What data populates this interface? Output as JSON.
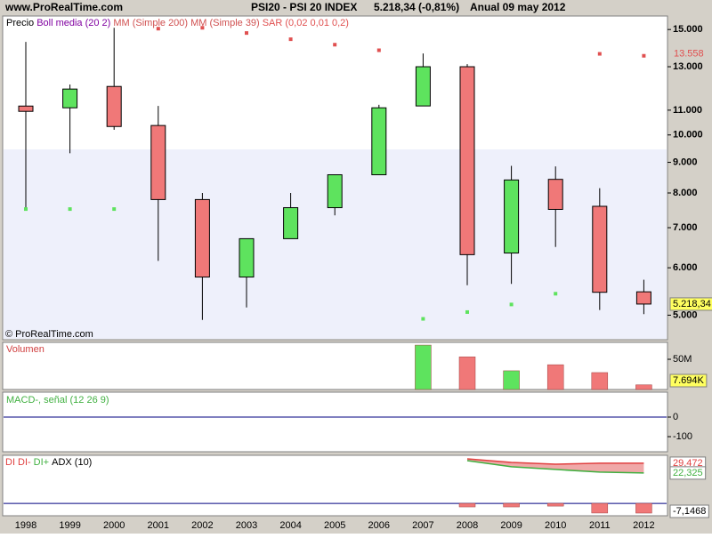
{
  "header": {
    "site": "www.ProRealTime.com",
    "instrument": "PSI20 - PSI 20 INDEX",
    "quote": "5.218,34 (-0,81%)",
    "period": "Anual  09 may 2012"
  },
  "chart_data": [
    {
      "type": "candlestick",
      "legend": [
        {
          "name": "Precio",
          "color": "#000000"
        },
        {
          "name": "Boll media (20 2)",
          "color": "#8000a0"
        },
        {
          "name": "MM (Simple 200)",
          "color": "#d05050"
        },
        {
          "name": "MM (Simple 39)",
          "color": "#d05050"
        }
      ],
      "watermark": "© ProRealTime.com",
      "categories": [
        "1998",
        "1999",
        "2000",
        "2001",
        "2002",
        "2003",
        "2004",
        "2005",
        "2006",
        "2007",
        "2008",
        "2009",
        "2010",
        "2011",
        "2012"
      ],
      "open": [
        11175,
        11100,
        12050,
        10370,
        7800,
        5790,
        6710,
        7560,
        8580,
        11180,
        13000,
        6350,
        8430,
        7600,
        5470
      ],
      "high": [
        14300,
        12140,
        15100,
        11180,
        8000,
        6710,
        8000,
        8580,
        11230,
        13680,
        13130,
        8880,
        8860,
        8150,
        5730
      ],
      "low": [
        7510,
        9320,
        10200,
        6160,
        4910,
        5150,
        6710,
        7340,
        8580,
        11180,
        5610,
        5640,
        6500,
        5100,
        5020
      ],
      "close": [
        10950,
        11930,
        10330,
        7800,
        5790,
        6710,
        7560,
        8580,
        11100,
        13000,
        6310,
        8410,
        7510,
        5460,
        5218.34
      ],
      "value_labels": [
        null,
        null,
        null,
        null,
        null,
        null,
        null,
        null,
        null,
        null,
        null,
        null,
        null,
        null,
        "5.218,34"
      ],
      "up_color": "#5ee35e",
      "down_color": "#f07878",
      "sar": {
        "name": "SAR (0,02 0,01 0,2)",
        "color": "#e05050",
        "values": [
          7520,
          7520,
          7520,
          15050,
          15100,
          14800,
          14450,
          14150,
          13850,
          4930,
          5060,
          5210,
          5430,
          13660,
          13558
        ],
        "value_labels": [
          null,
          null,
          null,
          null,
          null,
          null,
          null,
          null,
          null,
          null,
          null,
          null,
          null,
          null,
          "13.558"
        ]
      },
      "log_scale": true,
      "ylim": [
        4550,
        15800
      ],
      "yticks": [
        {
          "value": 15000,
          "label": "15.000"
        },
        {
          "value": 13000,
          "label": "13.000"
        },
        {
          "value": 11000,
          "label": "11.000"
        },
        {
          "value": 10000,
          "label": "10.000"
        },
        {
          "value": 9000,
          "label": "9.000"
        },
        {
          "value": 8000,
          "label": "8.000"
        },
        {
          "value": 7000,
          "label": "7.000"
        },
        {
          "value": 6000,
          "label": "6.000"
        },
        {
          "value": 5000,
          "label": "5.000"
        }
      ]
    },
    {
      "type": "bar",
      "title": "Volumen",
      "title_color": "#d04040",
      "values": [
        null,
        null,
        null,
        null,
        null,
        null,
        null,
        null,
        null,
        73500,
        54000,
        31000,
        41000,
        28000,
        7694
      ],
      "value_labels": [
        null,
        null,
        null,
        null,
        null,
        null,
        null,
        null,
        null,
        null,
        null,
        null,
        null,
        null,
        "7.694K"
      ],
      "colors": [
        null,
        null,
        null,
        null,
        null,
        null,
        null,
        null,
        null,
        "#5ee35e",
        "#f07878",
        "#5ee35e",
        "#f07878",
        "#f07878",
        "#f07878"
      ],
      "ylim": [
        0,
        78000
      ],
      "yticks": [
        {
          "value": 50000,
          "label": "50M"
        }
      ]
    },
    {
      "type": "line",
      "title": "MACD-, señal (12 26 9)",
      "title_color": "#40b040",
      "baseline": 0,
      "baseline_color": "#000080",
      "ylim": [
        -177,
        127
      ],
      "yticks": [
        0,
        -100
      ]
    },
    {
      "type": "line",
      "legend": [
        {
          "name": "DI",
          "color": "#e04040"
        },
        {
          "name": "ADX (10)",
          "color": "#000000"
        }
      ],
      "baseline": 0,
      "baseline_color": "#000080",
      "series": [
        {
          "name": "DI-",
          "color": "#e04040",
          "values": [
            null,
            null,
            null,
            null,
            null,
            null,
            null,
            null,
            null,
            null,
            32.7,
            30.1,
            28.8,
            29.5,
            29.472
          ],
          "value_labels": [
            null,
            null,
            null,
            null,
            null,
            null,
            null,
            null,
            null,
            null,
            null,
            null,
            null,
            null,
            "29,472"
          ]
        },
        {
          "name": "DI+",
          "color": "#40b040",
          "values": [
            null,
            null,
            null,
            null,
            null,
            null,
            null,
            null,
            null,
            null,
            31.4,
            26.9,
            24.9,
            23.0,
            22.325
          ],
          "value_labels": [
            null,
            null,
            null,
            null,
            null,
            null,
            null,
            null,
            null,
            null,
            null,
            null,
            null,
            null,
            "22,325"
          ]
        }
      ],
      "histogram": {
        "color": "#f07878",
        "values": [
          null,
          null,
          null,
          null,
          null,
          null,
          null,
          null,
          null,
          null,
          -2.6,
          -2.6,
          -2.0,
          -7.1,
          -7.1468
        ],
        "value_labels": [
          null,
          null,
          null,
          null,
          null,
          null,
          null,
          null,
          null,
          null,
          null,
          null,
          null,
          null,
          "-7,1468"
        ]
      },
      "fill_color": "#f0a8a8",
      "ylim": [
        -9.1,
        35.3
      ]
    }
  ]
}
